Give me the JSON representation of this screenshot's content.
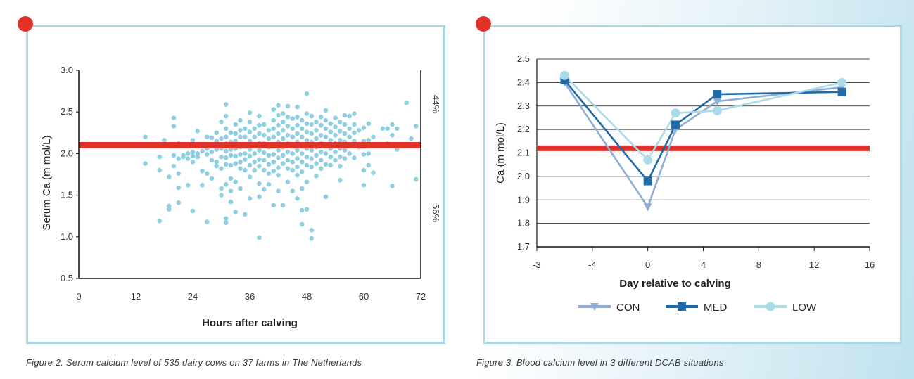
{
  "colors": {
    "panel_border": "#a9d7e5",
    "marker_dot": "#e0322b",
    "threshold_line": "#e0322b",
    "scatter_point": "#8fcfe0",
    "con": "#8fadd6",
    "med": "#1f6aa8",
    "low": "#a9dbe8"
  },
  "figure2": {
    "caption": "Figure 2. Serum calcium level of 535 dairy cows on 37 farms in The Netherlands",
    "right_label_top": "44%",
    "right_label_bottom": "56%"
  },
  "figure3": {
    "caption": "Figure 3. Blood calcium level in 3 different DCAB situations"
  },
  "chart_data": [
    {
      "type": "scatter",
      "xlabel": "Hours after calving",
      "ylabel": "Serum Ca (m mol/L)",
      "xlim": [
        0,
        72
      ],
      "ylim": [
        0.5,
        3.0
      ],
      "x_ticks": [
        "0",
        "12",
        "24",
        "36",
        "48",
        "60",
        "72"
      ],
      "y_ticks": [
        "0.5",
        "1.0",
        "1.5",
        "2.0",
        "2.5",
        "3.0"
      ],
      "threshold_y": 2.1,
      "grid": false,
      "points": [
        [
          14,
          2.2
        ],
        [
          14,
          1.88
        ],
        [
          17,
          1.96
        ],
        [
          17,
          1.8
        ],
        [
          17,
          1.19
        ],
        [
          18,
          2.16
        ],
        [
          19,
          1.72
        ],
        [
          19,
          1.37
        ],
        [
          19,
          1.33
        ],
        [
          20,
          2.43
        ],
        [
          20,
          2.33
        ],
        [
          20,
          1.98
        ],
        [
          20,
          1.85
        ],
        [
          21,
          2.12
        ],
        [
          21,
          1.94
        ],
        [
          21,
          1.76
        ],
        [
          21,
          1.59
        ],
        [
          21,
          1.41
        ],
        [
          22,
          2.09
        ],
        [
          22,
          1.98
        ],
        [
          22,
          1.96
        ],
        [
          23,
          2.0
        ],
        [
          23,
          1.94
        ],
        [
          23,
          1.62
        ],
        [
          24,
          2.16
        ],
        [
          24,
          2.02
        ],
        [
          24,
          1.97
        ],
        [
          24,
          1.9
        ],
        [
          24,
          1.31
        ],
        [
          25,
          2.27
        ],
        [
          25,
          2.1
        ],
        [
          25,
          2.0
        ],
        [
          25,
          1.96
        ],
        [
          26,
          2.09
        ],
        [
          26,
          2.03
        ],
        [
          26,
          1.79
        ],
        [
          26,
          1.62
        ],
        [
          27,
          2.2
        ],
        [
          27,
          2.06
        ],
        [
          27,
          1.99
        ],
        [
          27,
          1.76
        ],
        [
          27,
          1.18
        ],
        [
          28,
          2.19
        ],
        [
          28,
          2.1
        ],
        [
          28,
          2.02
        ],
        [
          28,
          1.92
        ],
        [
          28,
          1.7
        ],
        [
          29,
          2.25
        ],
        [
          29,
          2.15
        ],
        [
          29,
          2.05
        ],
        [
          29,
          1.9
        ],
        [
          29,
          1.85
        ],
        [
          30,
          2.38
        ],
        [
          30,
          2.18
        ],
        [
          30,
          2.06
        ],
        [
          30,
          1.96
        ],
        [
          30,
          1.82
        ],
        [
          30,
          1.58
        ],
        [
          30,
          1.5
        ],
        [
          31,
          2.59
        ],
        [
          31,
          2.45
        ],
        [
          31,
          2.3
        ],
        [
          31,
          2.2
        ],
        [
          31,
          2.12
        ],
        [
          31,
          2.03
        ],
        [
          31,
          1.95
        ],
        [
          31,
          1.87
        ],
        [
          31,
          1.63
        ],
        [
          31,
          1.22
        ],
        [
          31,
          1.17
        ],
        [
          32,
          2.25
        ],
        [
          32,
          2.14
        ],
        [
          32,
          2.05
        ],
        [
          32,
          1.98
        ],
        [
          32,
          1.86
        ],
        [
          32,
          1.7
        ],
        [
          32,
          1.55
        ],
        [
          32,
          1.42
        ],
        [
          33,
          2.35
        ],
        [
          33,
          2.24
        ],
        [
          33,
          2.15
        ],
        [
          33,
          2.06
        ],
        [
          33,
          1.97
        ],
        [
          33,
          1.88
        ],
        [
          33,
          1.66
        ],
        [
          33,
          1.3
        ],
        [
          34,
          2.4
        ],
        [
          34,
          2.28
        ],
        [
          34,
          2.2
        ],
        [
          34,
          2.08
        ],
        [
          34,
          1.99
        ],
        [
          34,
          1.9
        ],
        [
          34,
          1.82
        ],
        [
          34,
          1.58
        ],
        [
          35,
          2.3
        ],
        [
          35,
          2.2
        ],
        [
          35,
          2.1
        ],
        [
          35,
          2.0
        ],
        [
          35,
          1.93
        ],
        [
          35,
          1.8
        ],
        [
          35,
          1.27
        ],
        [
          36,
          2.49
        ],
        [
          36,
          2.38
        ],
        [
          36,
          2.26
        ],
        [
          36,
          2.15
        ],
        [
          36,
          2.05
        ],
        [
          36,
          1.97
        ],
        [
          36,
          1.86
        ],
        [
          36,
          1.72
        ],
        [
          36,
          1.46
        ],
        [
          37,
          2.3
        ],
        [
          37,
          2.2
        ],
        [
          37,
          2.1
        ],
        [
          37,
          2.0
        ],
        [
          37,
          1.9
        ],
        [
          37,
          1.8
        ],
        [
          38,
          2.45
        ],
        [
          38,
          2.34
        ],
        [
          38,
          2.24
        ],
        [
          38,
          2.13
        ],
        [
          38,
          2.04
        ],
        [
          38,
          1.93
        ],
        [
          38,
          1.85
        ],
        [
          38,
          1.64
        ],
        [
          38,
          1.48
        ],
        [
          38,
          0.99
        ],
        [
          39,
          2.35
        ],
        [
          39,
          2.22
        ],
        [
          39,
          2.12
        ],
        [
          39,
          2.01
        ],
        [
          39,
          1.92
        ],
        [
          39,
          1.8
        ],
        [
          39,
          1.57
        ],
        [
          40,
          2.28
        ],
        [
          40,
          2.18
        ],
        [
          40,
          2.08
        ],
        [
          40,
          1.98
        ],
        [
          40,
          1.87
        ],
        [
          40,
          1.76
        ],
        [
          40,
          1.63
        ],
        [
          41,
          2.53
        ],
        [
          41,
          2.4
        ],
        [
          41,
          2.3
        ],
        [
          41,
          2.2
        ],
        [
          41,
          2.1
        ],
        [
          41,
          1.99
        ],
        [
          41,
          1.9
        ],
        [
          41,
          1.79
        ],
        [
          41,
          1.38
        ],
        [
          42,
          2.58
        ],
        [
          42,
          2.46
        ],
        [
          42,
          2.34
        ],
        [
          42,
          2.24
        ],
        [
          42,
          2.14
        ],
        [
          42,
          2.04
        ],
        [
          42,
          1.95
        ],
        [
          42,
          1.83
        ],
        [
          42,
          1.74
        ],
        [
          42,
          1.55
        ],
        [
          43,
          2.48
        ],
        [
          43,
          2.38
        ],
        [
          43,
          2.28
        ],
        [
          43,
          2.18
        ],
        [
          43,
          2.08
        ],
        [
          43,
          1.98
        ],
        [
          43,
          1.88
        ],
        [
          43,
          1.38
        ],
        [
          44,
          2.57
        ],
        [
          44,
          2.44
        ],
        [
          44,
          2.33
        ],
        [
          44,
          2.22
        ],
        [
          44,
          2.12
        ],
        [
          44,
          2.02
        ],
        [
          44,
          1.92
        ],
        [
          44,
          1.82
        ],
        [
          44,
          1.66
        ],
        [
          45,
          2.42
        ],
        [
          45,
          2.3
        ],
        [
          45,
          2.2
        ],
        [
          45,
          2.1
        ],
        [
          45,
          2.0
        ],
        [
          45,
          1.9
        ],
        [
          45,
          1.8
        ],
        [
          45,
          1.55
        ],
        [
          46,
          2.56
        ],
        [
          46,
          2.44
        ],
        [
          46,
          2.34
        ],
        [
          46,
          2.24
        ],
        [
          46,
          2.14
        ],
        [
          46,
          2.04
        ],
        [
          46,
          1.94
        ],
        [
          46,
          1.84
        ],
        [
          46,
          1.74
        ],
        [
          46,
          1.46
        ],
        [
          47,
          2.4
        ],
        [
          47,
          2.3
        ],
        [
          47,
          2.2
        ],
        [
          47,
          2.1
        ],
        [
          47,
          2.0
        ],
        [
          47,
          1.9
        ],
        [
          47,
          1.78
        ],
        [
          47,
          1.58
        ],
        [
          47,
          1.32
        ],
        [
          47,
          1.15
        ],
        [
          48,
          2.72
        ],
        [
          48,
          2.48
        ],
        [
          48,
          2.36
        ],
        [
          48,
          2.26
        ],
        [
          48,
          2.16
        ],
        [
          48,
          2.06
        ],
        [
          48,
          1.96
        ],
        [
          48,
          1.86
        ],
        [
          48,
          1.66
        ],
        [
          48,
          1.33
        ],
        [
          49,
          2.45
        ],
        [
          49,
          2.35
        ],
        [
          49,
          2.24
        ],
        [
          49,
          2.14
        ],
        [
          49,
          2.04
        ],
        [
          49,
          1.94
        ],
        [
          49,
          1.84
        ],
        [
          49,
          1.08
        ],
        [
          49,
          0.98
        ],
        [
          50,
          2.38
        ],
        [
          50,
          2.28
        ],
        [
          50,
          2.18
        ],
        [
          50,
          2.08
        ],
        [
          50,
          1.98
        ],
        [
          50,
          1.88
        ],
        [
          50,
          1.73
        ],
        [
          51,
          2.44
        ],
        [
          51,
          2.34
        ],
        [
          51,
          2.22
        ],
        [
          51,
          2.12
        ],
        [
          51,
          2.02
        ],
        [
          51,
          1.92
        ],
        [
          51,
          1.82
        ],
        [
          52,
          2.52
        ],
        [
          52,
          2.4
        ],
        [
          52,
          2.3
        ],
        [
          52,
          2.2
        ],
        [
          52,
          2.1
        ],
        [
          52,
          2.0
        ],
        [
          52,
          1.87
        ],
        [
          52,
          1.48
        ],
        [
          53,
          2.36
        ],
        [
          53,
          2.26
        ],
        [
          53,
          2.16
        ],
        [
          53,
          2.06
        ],
        [
          53,
          1.96
        ],
        [
          53,
          1.86
        ],
        [
          54,
          2.43
        ],
        [
          54,
          2.32
        ],
        [
          54,
          2.22
        ],
        [
          54,
          2.12
        ],
        [
          54,
          2.02
        ],
        [
          54,
          1.92
        ],
        [
          55,
          2.38
        ],
        [
          55,
          2.27
        ],
        [
          55,
          2.16
        ],
        [
          55,
          2.06
        ],
        [
          55,
          1.96
        ],
        [
          55,
          1.85
        ],
        [
          55,
          1.68
        ],
        [
          56,
          2.46
        ],
        [
          56,
          2.35
        ],
        [
          56,
          2.24
        ],
        [
          56,
          2.14
        ],
        [
          56,
          2.04
        ],
        [
          56,
          1.94
        ],
        [
          57,
          2.45
        ],
        [
          57,
          2.3
        ],
        [
          57,
          2.2
        ],
        [
          57,
          2.1
        ],
        [
          57,
          2.0
        ],
        [
          58,
          2.48
        ],
        [
          58,
          2.35
        ],
        [
          58,
          2.25
        ],
        [
          58,
          2.15
        ],
        [
          58,
          1.95
        ],
        [
          59,
          2.28
        ],
        [
          59,
          2.08
        ],
        [
          60,
          2.31
        ],
        [
          60,
          2.15
        ],
        [
          60,
          1.99
        ],
        [
          60,
          1.8
        ],
        [
          60,
          1.62
        ],
        [
          61,
          2.36
        ],
        [
          61,
          2.16
        ],
        [
          61,
          2.0
        ],
        [
          61,
          1.86
        ],
        [
          62,
          2.2
        ],
        [
          62,
          1.77
        ],
        [
          64,
          2.3
        ],
        [
          65,
          2.3
        ],
        [
          65,
          2.12
        ],
        [
          66,
          2.35
        ],
        [
          66,
          2.22
        ],
        [
          66,
          1.61
        ],
        [
          67,
          2.3
        ],
        [
          67,
          2.05
        ],
        [
          69,
          2.61
        ],
        [
          70,
          2.18
        ],
        [
          71,
          2.33
        ],
        [
          71,
          1.69
        ]
      ]
    },
    {
      "type": "line",
      "xlabel": "Day relative to calving",
      "ylabel": "Ca (m mol/L)",
      "x_ticks": [
        "-3",
        "-4",
        "0",
        "4",
        "8",
        "12",
        "16"
      ],
      "y_ticks": [
        "1.7",
        "1.8",
        "1.9",
        "2.0",
        "2.1",
        "2.2",
        "2.3",
        "2.4",
        "2.5"
      ],
      "ylim": [
        1.7,
        2.5
      ],
      "threshold_y": 2.12,
      "grid": true,
      "legend_position": "bottom-center",
      "series": [
        {
          "name": "CON",
          "x": [
            -7,
            0,
            2,
            5,
            14
          ],
          "y": [
            2.4,
            1.87,
            2.2,
            2.32,
            2.38
          ]
        },
        {
          "name": "MED",
          "x": [
            -7,
            0,
            2,
            5,
            14
          ],
          "y": [
            2.41,
            1.98,
            2.22,
            2.35,
            2.36
          ]
        },
        {
          "name": "LOW",
          "x": [
            -7,
            0,
            2,
            5,
            14
          ],
          "y": [
            2.43,
            2.07,
            2.27,
            2.28,
            2.4
          ]
        }
      ]
    }
  ]
}
